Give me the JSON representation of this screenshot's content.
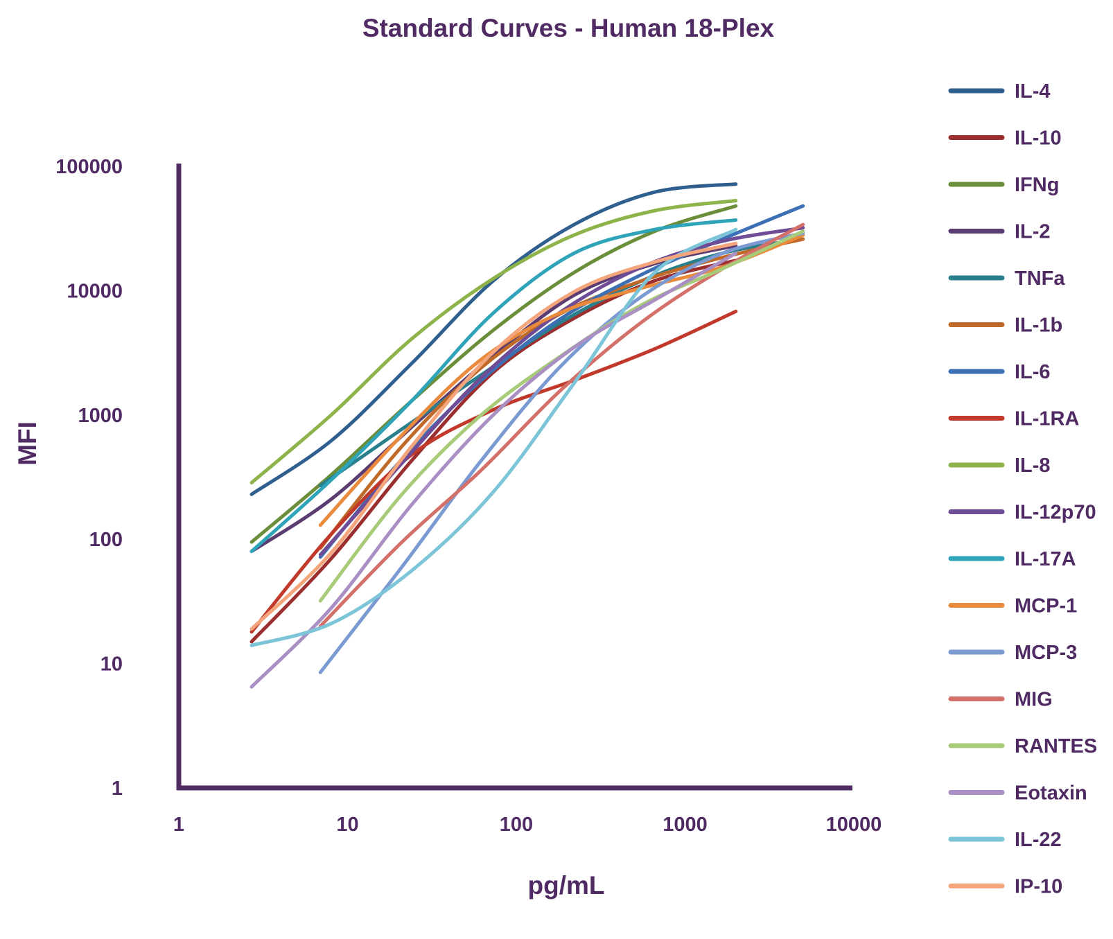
{
  "chart_data": {
    "type": "line",
    "title": "Standard Curves - Human 18-Plex",
    "xlabel": "pg/mL",
    "ylabel": "MFI",
    "x_scale": "log",
    "y_scale": "log",
    "xlim": [
      1,
      10000
    ],
    "ylim": [
      1,
      100000
    ],
    "x_ticks": [
      "1",
      "10",
      "100",
      "1000",
      "10000"
    ],
    "y_ticks": [
      "1",
      "10",
      "100",
      "1000",
      "10000",
      "100000"
    ],
    "grid": false,
    "legend_position": "right",
    "series": [
      {
        "name": "IL-4",
        "color": "#2f5f8f",
        "x": [
          2.7,
          8,
          24,
          73,
          220,
          660,
          2000
        ],
        "y": [
          230,
          620,
          2600,
          12000,
          34000,
          62000,
          72000
        ]
      },
      {
        "name": "IL-10",
        "color": "#9b2e2e",
        "x": [
          2.7,
          8,
          24,
          73,
          220,
          660,
          2000
        ],
        "y": [
          15,
          70,
          430,
          2200,
          6000,
          12000,
          17500
        ]
      },
      {
        "name": "IFNg",
        "color": "#6b8e3a",
        "x": [
          2.7,
          8,
          24,
          73,
          220,
          660,
          2000
        ],
        "y": [
          95,
          330,
          1300,
          4800,
          14000,
          30000,
          48000
        ]
      },
      {
        "name": "IL-2",
        "color": "#5b3d72",
        "x": [
          2.7,
          8,
          24,
          73,
          220,
          660,
          2000
        ],
        "y": [
          80,
          210,
          800,
          3000,
          9200,
          16500,
          23000
        ]
      },
      {
        "name": "TNFa",
        "color": "#2a7f8c",
        "x": [
          6.9,
          21,
          62,
          185,
          555,
          1667,
          5000
        ],
        "y": [
          270,
          770,
          2100,
          5600,
          12000,
          20000,
          26000
        ]
      },
      {
        "name": "IL-1b",
        "color": "#c06a2a",
        "x": [
          6.9,
          21,
          62,
          185,
          555,
          1667,
          5000
        ],
        "y": [
          85,
          560,
          2400,
          6600,
          12000,
          18500,
          26000
        ]
      },
      {
        "name": "IL-6",
        "color": "#3c6fb3",
        "x": [
          6.9,
          21,
          62,
          185,
          555,
          1667,
          5000
        ],
        "y": [
          72,
          440,
          1900,
          6000,
          13500,
          26000,
          48000
        ]
      },
      {
        "name": "IL-1RA",
        "color": "#c0392b",
        "x": [
          2.7,
          8,
          24,
          73,
          220,
          660,
          2000
        ],
        "y": [
          18,
          110,
          480,
          1100,
          1900,
          3400,
          6800
        ]
      },
      {
        "name": "IL-8",
        "color": "#8db34a",
        "x": [
          2.7,
          8,
          24,
          73,
          220,
          660,
          2000
        ],
        "y": [
          285,
          1000,
          4100,
          12500,
          28000,
          44000,
          53000
        ]
      },
      {
        "name": "IL-12p70",
        "color": "#6e4c96",
        "x": [
          6.9,
          21,
          62,
          185,
          555,
          1667,
          5000
        ],
        "y": [
          75,
          410,
          2000,
          6800,
          15500,
          25000,
          32000
        ]
      },
      {
        "name": "IL-17A",
        "color": "#2fa3b8",
        "x": [
          2.7,
          8,
          24,
          73,
          220,
          660,
          2000
        ],
        "y": [
          80,
          300,
          1300,
          6600,
          20000,
          31000,
          37000
        ]
      },
      {
        "name": "MCP-1",
        "color": "#e98a3c",
        "x": [
          6.9,
          21,
          62,
          185,
          555,
          1667,
          5000
        ],
        "y": [
          130,
          690,
          2800,
          6700,
          10500,
          15500,
          28000
        ]
      },
      {
        "name": "MCP-3",
        "color": "#7a9ad1",
        "x": [
          6.9,
          21,
          62,
          185,
          555,
          1667,
          5000
        ],
        "y": [
          8.5,
          60,
          430,
          2500,
          9000,
          20000,
          29000
        ]
      },
      {
        "name": "MIG",
        "color": "#d4706a",
        "x": [
          6.9,
          21,
          62,
          185,
          555,
          1667,
          5000
        ],
        "y": [
          20,
          95,
          360,
          1600,
          5600,
          15000,
          34000
        ]
      },
      {
        "name": "RANTES",
        "color": "#a8cb7a",
        "x": [
          6.9,
          21,
          62,
          185,
          555,
          1667,
          5000
        ],
        "y": [
          32,
          230,
          1000,
          3000,
          7700,
          15000,
          30000
        ]
      },
      {
        "name": "Eotaxin",
        "color": "#a98fc4",
        "x": [
          2.7,
          8,
          24,
          73,
          220,
          660,
          2000
        ],
        "y": [
          6.5,
          28,
          190,
          1000,
          3500,
          8400,
          20000
        ]
      },
      {
        "name": "IL-22",
        "color": "#7cc4d8",
        "x": [
          2.7,
          8,
          24,
          73,
          220,
          660,
          2000
        ],
        "y": [
          14,
          21,
          56,
          240,
          1800,
          14000,
          31000
        ]
      },
      {
        "name": "IP-10",
        "color": "#f4a57c",
        "x": [
          2.7,
          8,
          24,
          73,
          220,
          660,
          2000
        ],
        "y": [
          19,
          78,
          560,
          3200,
          9800,
          17000,
          24000
        ]
      }
    ]
  }
}
